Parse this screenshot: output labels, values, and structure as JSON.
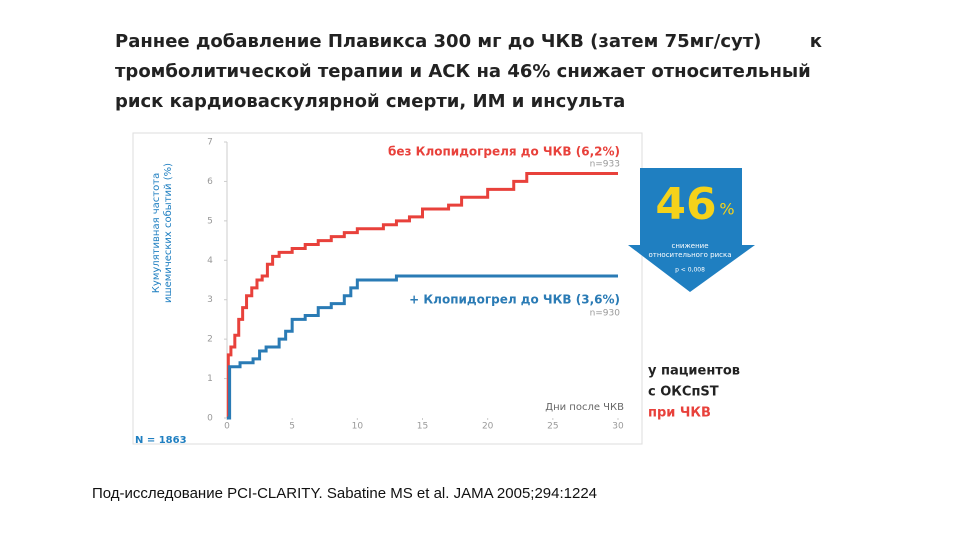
{
  "slide": {
    "title_lines": [
      [
        "Раннее добавление Плавикса 300 мг до ЧКВ (затем 75мг/сут)",
        "к"
      ],
      [
        "тромболитической терапии и АСК на 46% снижает относительный"
      ],
      [
        "риск кардиоваскулярной смерти, ИМ и инсульта"
      ]
    ],
    "badge": {
      "number": "46",
      "unit": "%",
      "lines": [
        "снижение",
        "относительного риска"
      ],
      "p": "p < 0,008"
    },
    "side_note": [
      "у пациентов",
      "с ОКСпST",
      "при ЧКВ"
    ],
    "footer": "Под-исследование PCI-CLARITY. Sabatine MS et al. JAMA 2005;294:1224"
  },
  "chart_data": {
    "type": "step-line",
    "ylabel": [
      "Кумулятивная частота",
      "ишемических событий (%)"
    ],
    "xlabel": "Дни после ЧКВ",
    "total": "N = 1863",
    "xlim": [
      0,
      30
    ],
    "xticks": [
      0,
      5,
      10,
      15,
      20,
      25,
      30
    ],
    "ylim": [
      0,
      7
    ],
    "yticks": [
      0,
      1,
      2,
      3,
      4,
      5,
      6,
      7
    ],
    "series": [
      {
        "name": "без Клопидогреля до ЧКВ (6,2%)",
        "n": "n=933",
        "color": "#e8413b",
        "x": [
          0,
          0.1,
          0.3,
          0.6,
          0.9,
          1.2,
          1.5,
          1.9,
          2.3,
          2.7,
          3.1,
          3.5,
          4,
          5,
          6,
          7,
          8,
          9,
          10,
          12,
          13,
          14,
          15,
          17,
          18,
          20,
          22,
          23,
          30
        ],
        "values": [
          0,
          1.6,
          1.8,
          2.1,
          2.5,
          2.8,
          3.1,
          3.3,
          3.5,
          3.6,
          3.9,
          4.1,
          4.2,
          4.3,
          4.4,
          4.5,
          4.6,
          4.7,
          4.8,
          4.9,
          5.0,
          5.1,
          5.3,
          5.4,
          5.6,
          5.8,
          6.0,
          6.2,
          6.2
        ]
      },
      {
        "name": "+ Клопидогрел до ЧКВ (3,6%)",
        "n": "n=930",
        "color": "#2a7bb5",
        "x": [
          0,
          0.2,
          1,
          2,
          2.5,
          3,
          4,
          4.5,
          5,
          6,
          7,
          8,
          9,
          9.5,
          10,
          13,
          30
        ],
        "values": [
          0,
          1.3,
          1.4,
          1.5,
          1.7,
          1.8,
          2.0,
          2.2,
          2.5,
          2.6,
          2.8,
          2.9,
          3.1,
          3.3,
          3.5,
          3.6,
          3.6
        ]
      }
    ]
  }
}
